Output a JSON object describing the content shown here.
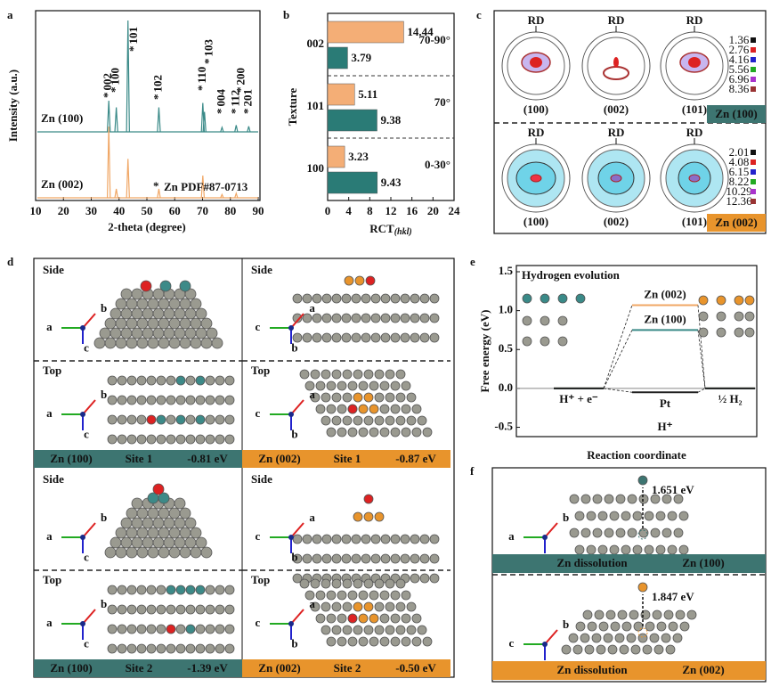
{
  "chart_data": [
    {
      "type": "xrd",
      "panel": "a",
      "xlabel": "2-theta (degree)",
      "ylabel": "Intensity (a.u.)",
      "xlim": [
        10,
        90
      ],
      "xticks": [
        10,
        20,
        30,
        40,
        50,
        60,
        70,
        80,
        90
      ],
      "ylim": [
        0,
        100
      ],
      "series": [
        {
          "name": "Zn (100)",
          "color": "#3a8a88",
          "x": [
            36.3,
            39.0,
            43.2,
            54.3,
            70.1,
            70.7,
            77.0,
            82.1,
            86.6
          ],
          "values": [
            28,
            22,
            100,
            22,
            26,
            18,
            4,
            6,
            5
          ]
        },
        {
          "name": "Zn (002)",
          "color": "#f0a766",
          "x": [
            36.3,
            39.0,
            43.2,
            54.3,
            70.1,
            77.0,
            82.1
          ],
          "values": [
            64,
            8,
            35,
            8,
            20,
            3,
            4
          ]
        }
      ],
      "peak_marker": "*",
      "peak_labels": [
        {
          "label": "002",
          "x": 36.3
        },
        {
          "label": "100",
          "x": 39.0
        },
        {
          "label": "101",
          "x": 43.2
        },
        {
          "label": "102",
          "x": 54.3
        },
        {
          "label": "103",
          "x": 70.7
        },
        {
          "label": "110",
          "x": 70.1
        },
        {
          "label": "004",
          "x": 77.0
        },
        {
          "label": "112",
          "x": 82.1
        },
        {
          "label": "200",
          "x": 84.0
        },
        {
          "label": "201",
          "x": 86.6
        }
      ],
      "legend": "Zn  PDF#87-0713"
    },
    {
      "type": "hbar",
      "panel": "b",
      "ylabel": "Texture",
      "xlabel": "RCT",
      "xlabel_sub": "(hkl)",
      "categories": [
        "002",
        "101",
        "100"
      ],
      "series": [
        {
          "color": "#f4ae76",
          "values": [
            14.44,
            5.11,
            3.23
          ]
        },
        {
          "color": "#2a7b76",
          "values": [
            3.79,
            9.38,
            9.43
          ]
        }
      ],
      "annotations": [
        "70-90°",
        "70°",
        "0-30°"
      ],
      "xlim": [
        0,
        24
      ],
      "xticks": [
        0,
        4,
        8,
        12,
        16,
        20,
        24
      ]
    },
    {
      "type": "energy",
      "panel": "e",
      "title": "Hydrogen evolution",
      "ylabel": "Free energy (eV)",
      "xlabel": "Reaction coordinate",
      "categories": [
        "H⁺ + e⁻",
        "H⁺",
        "½ H₂"
      ],
      "series": [
        {
          "name": "Zn (002)",
          "color": "#f0a766",
          "values": [
            0,
            1.07,
            0
          ]
        },
        {
          "name": "Zn (100)",
          "color": "#3a8a88",
          "values": [
            0,
            0.75,
            0
          ]
        },
        {
          "name": "Pt",
          "color": "#222222",
          "values": [
            0,
            -0.05,
            0
          ]
        }
      ],
      "ylim": [
        -0.62,
        1.58
      ],
      "yticks": [
        1.5,
        {
          "value": 1.0,
          "label": "1.0"
        },
        0.5,
        {
          "value": 0.0,
          "label": "0.0"
        },
        -0.5
      ]
    }
  ],
  "diagrams": {
    "c": {
      "panel": "c",
      "rd": "RD",
      "planes": [
        "(100)",
        "(002)",
        "(101)"
      ],
      "rows": [
        {
          "badge": "Zn (100)",
          "legend": [
            "1.36",
            "2.76",
            "4.16",
            "5.56",
            "6.96",
            "8.36"
          ]
        },
        {
          "badge": "Zn (002)",
          "legend": [
            "2.01",
            "4.08",
            "6.15",
            "8.22",
            "10.29",
            "12.36"
          ]
        }
      ]
    },
    "d": {
      "panel": "d",
      "axes": [
        "a",
        "b",
        "c"
      ],
      "cells": [
        {
          "side": "Side",
          "top": "Top",
          "surface": "Zn (100)",
          "site": "Site 1",
          "energy": "-0.81 eV"
        },
        {
          "side": "Side",
          "top": "Top",
          "surface": "Zn (002)",
          "site": "Site 1",
          "energy": "-0.87 eV"
        },
        {
          "side": "Side",
          "top": "Top",
          "surface": "Zn (100)",
          "site": "Site 2",
          "energy": "-1.39 eV"
        },
        {
          "side": "Side",
          "top": "Top",
          "surface": "Zn (002)",
          "site": "Site 2",
          "energy": "-0.50 eV"
        }
      ]
    },
    "f": {
      "panel": "f",
      "axes": [
        "a",
        "b",
        "c"
      ],
      "rows": [
        {
          "energy": "1.651 eV",
          "label": "Zn dissolution",
          "surface": "Zn (100)"
        },
        {
          "energy": "1.847 eV",
          "label": "Zn dissolution",
          "surface": "Zn (002)"
        }
      ]
    }
  }
}
